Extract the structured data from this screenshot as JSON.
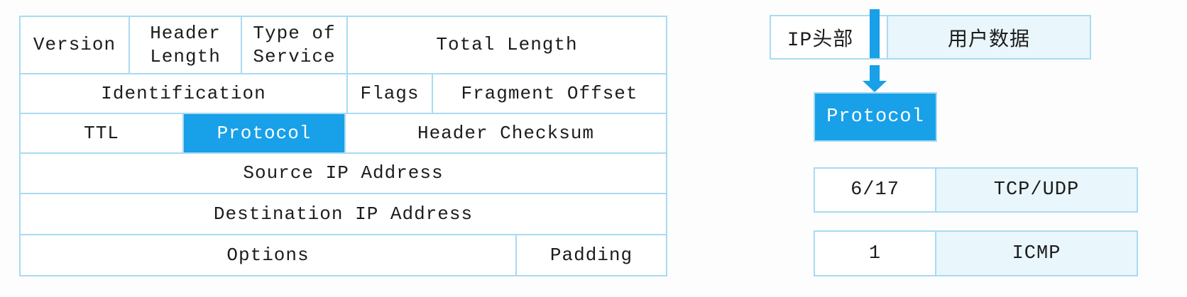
{
  "colors": {
    "highlight": "#18A0E8",
    "border": "#A8DBF2",
    "light_fill": "#E9F6FC",
    "text": "#1C1C1C",
    "highlight_text": "#FFFFFF",
    "page_bg": "#FDFDFD"
  },
  "left_table": {
    "row1": {
      "version": "Version",
      "header_length": "Header Length",
      "type_of_service": "Type of Service",
      "total_length": "Total Length"
    },
    "row2": {
      "identification": "Identification",
      "flags": "Flags",
      "fragment_offset": "Fragment Offset"
    },
    "row3": {
      "ttl": "TTL",
      "protocol": "Protocol",
      "header_checksum": "Header Checksum"
    },
    "row4": {
      "source_ip": "Source IP Address"
    },
    "row5": {
      "destination_ip": "Destination IP Address"
    },
    "row6": {
      "options": "Options",
      "padding": "Padding"
    }
  },
  "right_panel": {
    "packet_box": {
      "ip_header": "IP头部",
      "user_data": "用户数据"
    },
    "protocol_box": {
      "label": "Protocol"
    },
    "mapping_rows": [
      {
        "number": "6/17",
        "name": "TCP/UDP"
      },
      {
        "number": "1",
        "name": "ICMP"
      }
    ]
  }
}
